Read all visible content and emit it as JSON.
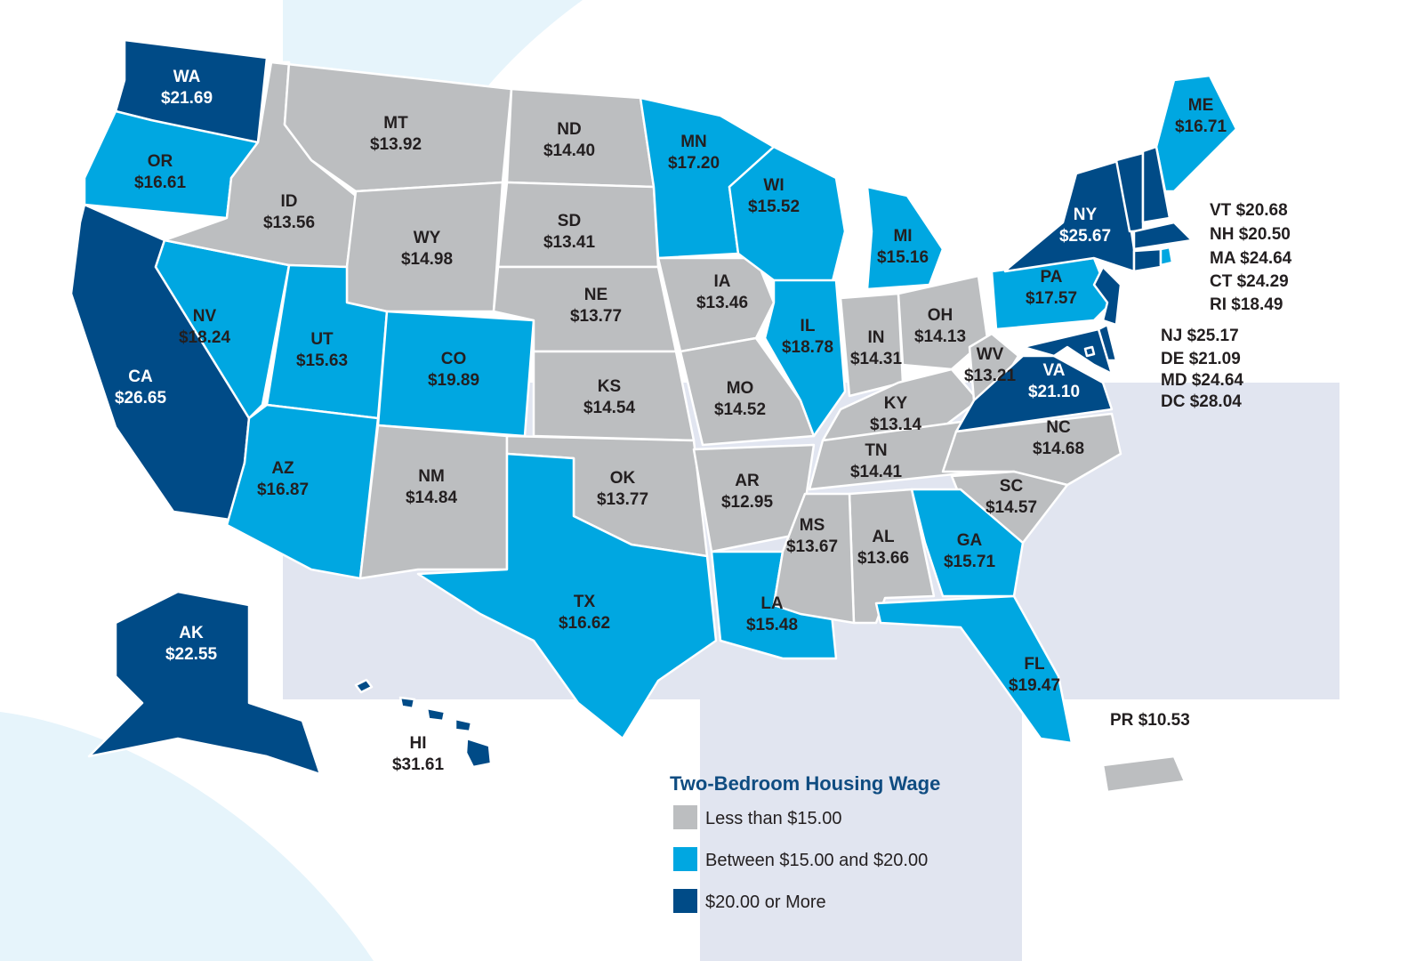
{
  "map": {
    "states": [
      {
        "code": "WA",
        "wage": "$21.69",
        "color": "#004b87"
      },
      {
        "code": "OR",
        "wage": "$16.61",
        "color": "#00a7e1"
      },
      {
        "code": "CA",
        "wage": "$26.65",
        "color": "#004b87"
      },
      {
        "code": "NV",
        "wage": "$18.24",
        "color": "#00a7e1"
      },
      {
        "code": "ID",
        "wage": "$13.56",
        "color": "#bcbec0"
      },
      {
        "code": "MT",
        "wage": "$13.92",
        "color": "#bcbec0"
      },
      {
        "code": "WY",
        "wage": "$14.98",
        "color": "#bcbec0"
      },
      {
        "code": "UT",
        "wage": "$15.63",
        "color": "#00a7e1"
      },
      {
        "code": "AZ",
        "wage": "$16.87",
        "color": "#00a7e1"
      },
      {
        "code": "CO",
        "wage": "$19.89",
        "color": "#00a7e1"
      },
      {
        "code": "NM",
        "wage": "$14.84",
        "color": "#bcbec0"
      },
      {
        "code": "ND",
        "wage": "$14.40",
        "color": "#bcbec0"
      },
      {
        "code": "SD",
        "wage": "$13.41",
        "color": "#bcbec0"
      },
      {
        "code": "NE",
        "wage": "$13.77",
        "color": "#bcbec0"
      },
      {
        "code": "KS",
        "wage": "$14.54",
        "color": "#bcbec0"
      },
      {
        "code": "OK",
        "wage": "$13.77",
        "color": "#bcbec0"
      },
      {
        "code": "TX",
        "wage": "$16.62",
        "color": "#00a7e1"
      },
      {
        "code": "MN",
        "wage": "$17.20",
        "color": "#00a7e1"
      },
      {
        "code": "IA",
        "wage": "$13.46",
        "color": "#bcbec0"
      },
      {
        "code": "MO",
        "wage": "$14.52",
        "color": "#bcbec0"
      },
      {
        "code": "AR",
        "wage": "$12.95",
        "color": "#bcbec0"
      },
      {
        "code": "LA",
        "wage": "$15.48",
        "color": "#00a7e1"
      },
      {
        "code": "WI",
        "wage": "$15.52",
        "color": "#00a7e1"
      },
      {
        "code": "IL",
        "wage": "$18.78",
        "color": "#00a7e1"
      },
      {
        "code": "MI",
        "wage": "$15.16",
        "color": "#00a7e1"
      },
      {
        "code": "IN",
        "wage": "$14.31",
        "color": "#bcbec0"
      },
      {
        "code": "OH",
        "wage": "$14.13",
        "color": "#bcbec0"
      },
      {
        "code": "KY",
        "wage": "$13.14",
        "color": "#bcbec0"
      },
      {
        "code": "TN",
        "wage": "$14.41",
        "color": "#bcbec0"
      },
      {
        "code": "WV",
        "wage": "$13.21",
        "color": "#bcbec0"
      },
      {
        "code": "VA",
        "wage": "$21.10",
        "color": "#004b87"
      },
      {
        "code": "NC",
        "wage": "$14.68",
        "color": "#bcbec0"
      },
      {
        "code": "SC",
        "wage": "$14.57",
        "color": "#bcbec0"
      },
      {
        "code": "GA",
        "wage": "$15.71",
        "color": "#00a7e1"
      },
      {
        "code": "AL",
        "wage": "$13.66",
        "color": "#bcbec0"
      },
      {
        "code": "MS",
        "wage": "$13.67",
        "color": "#bcbec0"
      },
      {
        "code": "FL",
        "wage": "$19.47",
        "color": "#00a7e1"
      },
      {
        "code": "PA",
        "wage": "$17.57",
        "color": "#00a7e1"
      },
      {
        "code": "NY",
        "wage": "$25.67",
        "color": "#004b87"
      },
      {
        "code": "ME",
        "wage": "$16.71",
        "color": "#00a7e1"
      },
      {
        "code": "VT",
        "wage": "$20.68",
        "color": "#004b87"
      },
      {
        "code": "NH",
        "wage": "$20.50",
        "color": "#004b87"
      },
      {
        "code": "MA",
        "wage": "$24.64",
        "color": "#004b87"
      },
      {
        "code": "CT",
        "wage": "$24.29",
        "color": "#004b87"
      },
      {
        "code": "RI",
        "wage": "$18.49",
        "color": "#00a7e1"
      },
      {
        "code": "NJ",
        "wage": "$25.17",
        "color": "#004b87"
      },
      {
        "code": "DE",
        "wage": "$21.09",
        "color": "#004b87"
      },
      {
        "code": "MD",
        "wage": "$24.64",
        "color": "#004b87"
      },
      {
        "code": "DC",
        "wage": "$28.04",
        "color": "#004b87"
      },
      {
        "code": "AK",
        "wage": "$22.55",
        "color": "#004b87"
      },
      {
        "code": "HI",
        "wage": "$31.61",
        "color": "#004b87"
      },
      {
        "code": "PR",
        "wage": "$10.53",
        "color": "#bcbec0"
      }
    ],
    "legend": {
      "title": "Two-Bedroom Housing Wage",
      "items": [
        {
          "label": "Less than $15.00",
          "color": "#bcbec0"
        },
        {
          "label": "Between $15.00 and $20.00",
          "color": "#00a7e1"
        },
        {
          "label": "$20.00 or More",
          "color": "#004b87"
        }
      ]
    }
  }
}
